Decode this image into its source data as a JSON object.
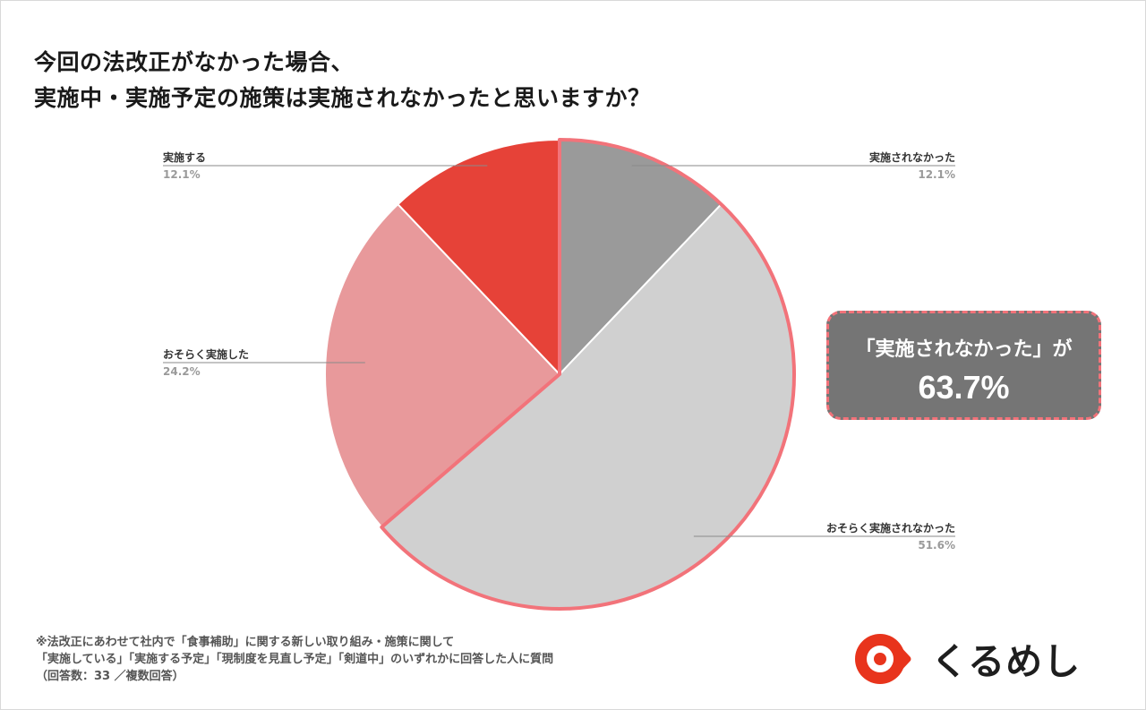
{
  "title_lines": [
    "今回の法改正がなかった場合、",
    "実施中・実施予定の施策は実施されなかったと思いますか？"
  ],
  "chart_data": {
    "type": "pie",
    "title": "今回の法改正がなかった場合、実施中・実施予定の施策は実施されなかったと思いますか？",
    "start_angle_deg": 0,
    "direction": "clockwise",
    "slices": [
      {
        "label": "実施されなかった",
        "value": 12.1,
        "value_label": "12.1%",
        "color": "#9a9a9a"
      },
      {
        "label": "おそらく実施されなかった",
        "value": 51.6,
        "value_label": "51.6%",
        "color": "#d0d0d0"
      },
      {
        "label": "おそらく実施した",
        "value": 24.2,
        "value_label": "24.2%",
        "color": "#e8999b"
      },
      {
        "label": "実施する",
        "value": 12.1,
        "value_label": "12.1%",
        "color": "#e64238"
      }
    ],
    "highlight": {
      "slices": [
        "実施されなかった",
        "おそらく実施されなかった"
      ],
      "outline_color": "#f2737a"
    }
  },
  "callout": {
    "line1": "「実施されなかった」が",
    "line2": "63.7%"
  },
  "footnote_lines": [
    "※法改正にあわせて社内で「食事補助」に関する新しい取り組み・施策に関して",
    "「実施している」「実施する予定」「現制度を見直し予定」「剣道中」のいずれかに回答した人に質問",
    "（回答数：33 ／複数回答）"
  ],
  "logo": {
    "text": "くるめし",
    "brand_color": "#e8341c"
  }
}
